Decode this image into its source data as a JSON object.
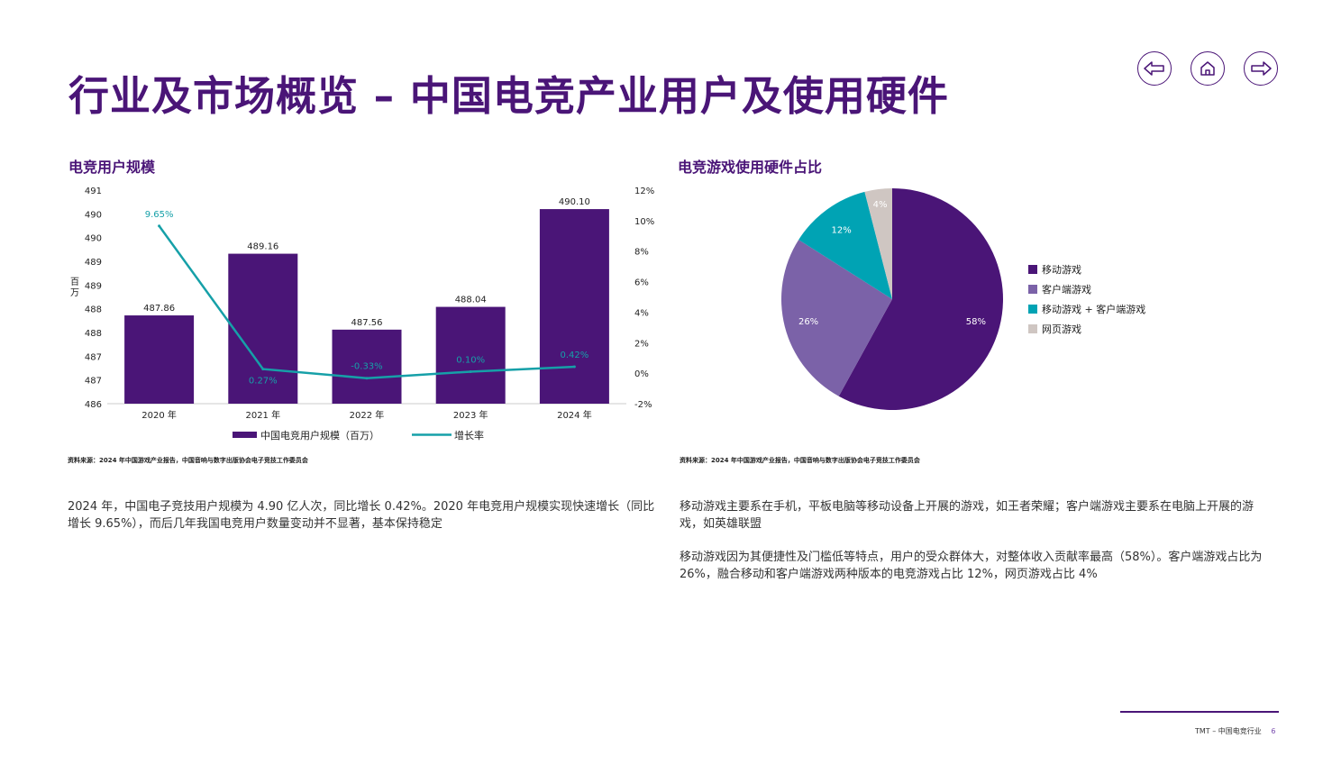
{
  "title": "行业及市场概览 – 中国电竞产业用户及使用硬件",
  "nav": {
    "back": "arrow-left-icon",
    "home": "home-icon",
    "forward": "arrow-right-icon"
  },
  "colors": {
    "brand": "#4a1577",
    "teal": "#16a0a8",
    "light_purple": "#7b62a8",
    "gray": "#cfc6c2"
  },
  "left": {
    "section_title": "电竞用户规模",
    "source": "资料来源：2024 年中国游戏产业报告，中国音响与数字出版协会电子竞技工作委员会",
    "paragraph": "2024 年，中国电子竞技用户规模为 4.90 亿人次，同比增长 0.42%。2020 年电竞用户规模实现快速增长（同比增长 9.65%），而后几年我国电竞用户数量变动并不显著，基本保持稳定"
  },
  "right": {
    "section_title": "电竞游戏使用硬件占比",
    "source": "资料来源：2024 年中国游戏产业报告，中国音响与数字出版协会电子竞技工作委员会",
    "paragraph1": "移动游戏主要系在手机，平板电脑等移动设备上开展的游戏，如王者荣耀；客户端游戏主要系在电脑上开展的游戏，如英雄联盟",
    "paragraph2": "移动游戏因为其便捷性及门槛低等特点，用户的受众群体大，对整体收入贡献率最高（58%）。客户端游戏占比为 26%，融合移动和客户端游戏两种版本的电竞游戏占比 12%，网页游戏占比 4%"
  },
  "footer": {
    "text": "TMT –  中国电竞行业",
    "page": "6"
  },
  "chart_data": [
    {
      "type": "bar",
      "categories": [
        "2020 年",
        "2021 年",
        "2022 年",
        "2023 年",
        "2024 年"
      ],
      "series": [
        {
          "name": "中国电竞用户规模（百万）",
          "type": "bar",
          "axis": "left",
          "values": [
            487.86,
            489.16,
            487.56,
            488.04,
            490.1
          ],
          "labels": [
            "487.86",
            "489.16",
            "487.56",
            "488.04",
            "490.10"
          ],
          "color": "#4a1577"
        },
        {
          "name": "增长率",
          "type": "line",
          "axis": "right",
          "values": [
            9.65,
            0.27,
            -0.33,
            0.1,
            0.42
          ],
          "labels": [
            "9.65%",
            "0.27%",
            "-0.33%",
            "0.10%",
            "0.42%"
          ],
          "color": "#16a0a8"
        }
      ],
      "ylabel": "百万",
      "ylim": [
        486,
        490.5
      ],
      "yticks": [
        486,
        486.5,
        487,
        487.5,
        488,
        488.5,
        489,
        489.5,
        490,
        490.5
      ],
      "ytick_labels": [
        "486",
        "487",
        "487",
        "488",
        "488",
        "489",
        "489",
        "490",
        "490",
        "491"
      ],
      "y2lim": [
        -2,
        12
      ],
      "y2ticks": [
        -2,
        0,
        2,
        4,
        6,
        8,
        10,
        12
      ],
      "y2tick_labels": [
        "-2%",
        "0%",
        "2%",
        "4%",
        "6%",
        "8%",
        "10%",
        "12%"
      ],
      "grid": false,
      "legend": "bottom"
    },
    {
      "type": "pie",
      "categories": [
        "移动游戏",
        "客户端游戏",
        "移动游戏 + 客户端游戏",
        "网页游戏"
      ],
      "values": [
        58,
        26,
        12,
        4
      ],
      "labels": [
        "58%",
        "26%",
        "12%",
        "4%"
      ],
      "colors": [
        "#4a1577",
        "#7b62a8",
        "#00a3b4",
        "#cfc6c2"
      ],
      "legend": "right"
    }
  ]
}
